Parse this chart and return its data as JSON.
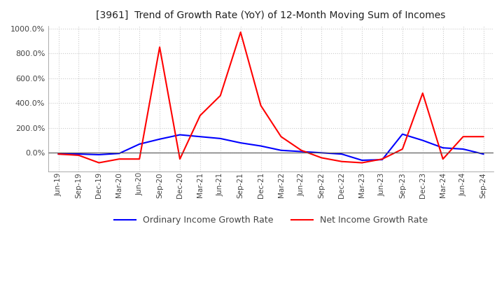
{
  "title": "[3961]  Trend of Growth Rate (YoY) of 12-Month Moving Sum of Incomes",
  "legend_labels": [
    "Ordinary Income Growth Rate",
    "Net Income Growth Rate"
  ],
  "line_colors": [
    "blue",
    "red"
  ],
  "ylim": [
    -150,
    1020
  ],
  "yticks": [
    0,
    200,
    400,
    600,
    800,
    1000
  ],
  "background_color": "#ffffff",
  "grid_color": "#cccccc",
  "dates": [
    "Jun-19",
    "Sep-19",
    "Dec-19",
    "Mar-20",
    "Jun-20",
    "Sep-20",
    "Dec-20",
    "Mar-21",
    "Jun-21",
    "Sep-21",
    "Dec-21",
    "Mar-22",
    "Jun-22",
    "Sep-22",
    "Dec-22",
    "Mar-23",
    "Jun-23",
    "Sep-23",
    "Dec-23",
    "Mar-24",
    "Jun-24",
    "Sep-24"
  ],
  "ordinary_income": [
    -10,
    -10,
    -15,
    -5,
    70,
    110,
    145,
    130,
    115,
    80,
    55,
    20,
    10,
    0,
    -10,
    -60,
    -55,
    150,
    100,
    40,
    30,
    -10
  ],
  "net_income": [
    -10,
    -20,
    -80,
    -50,
    -50,
    850,
    -50,
    300,
    460,
    970,
    380,
    130,
    20,
    -40,
    -70,
    -80,
    -50,
    30,
    480,
    -50,
    130,
    130
  ]
}
